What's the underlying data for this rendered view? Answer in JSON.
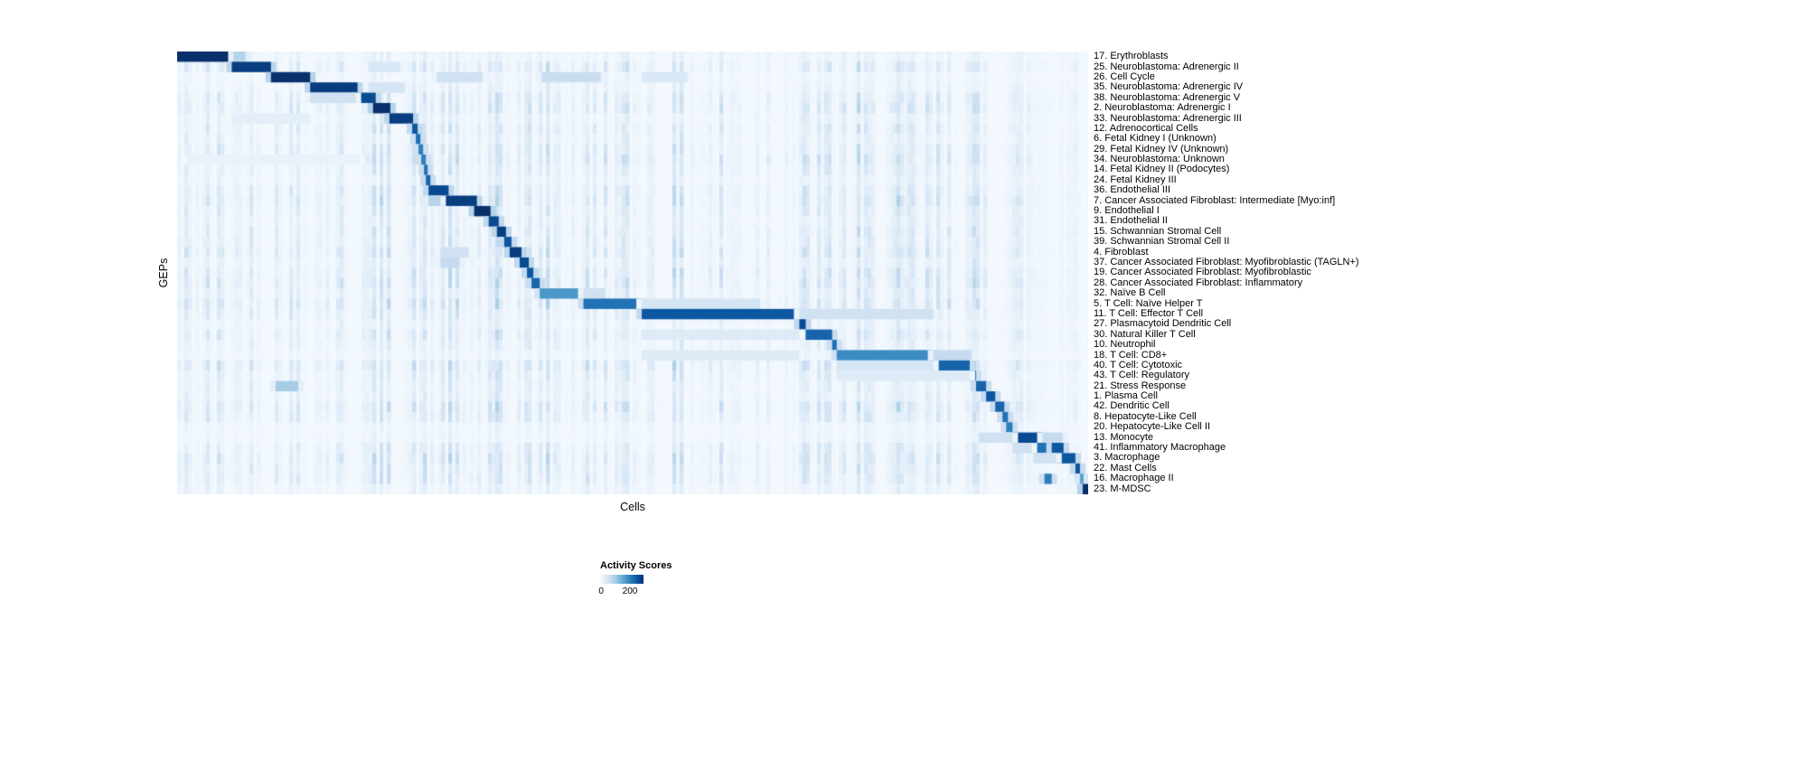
{
  "chart_data": {
    "type": "heatmap",
    "title": "",
    "xlabel": "Cells",
    "ylabel": "GEPs",
    "legend_title": "Activity Scores",
    "colormap": "Blues",
    "colorbar": {
      "min_label": "0",
      "max_label": "200",
      "range": [
        0,
        200
      ]
    },
    "colormap_stops": [
      "#f7fbff",
      "#deebf7",
      "#c6dbef",
      "#9ecae1",
      "#6baed6",
      "#4292c6",
      "#2171b5",
      "#08519c",
      "#08306b"
    ],
    "value_range": [
      0,
      200
    ],
    "grid": false,
    "legend_position": "bottom",
    "rows": [
      {
        "label": "17. Erythroblasts",
        "segments": [
          [
            0.0,
            0.062,
            200
          ],
          [
            0.062,
            0.075,
            60
          ]
        ]
      },
      {
        "label": "25. Neuroblastoma: Adrenergic II",
        "segments": [
          [
            0.06,
            0.103,
            190
          ],
          [
            0.21,
            0.245,
            30
          ]
        ]
      },
      {
        "label": "26. Cell Cycle",
        "segments": [
          [
            0.103,
            0.146,
            200
          ],
          [
            0.285,
            0.335,
            40
          ],
          [
            0.4,
            0.465,
            45
          ],
          [
            0.51,
            0.56,
            30
          ]
        ]
      },
      {
        "label": "35. Neuroblastoma: Adrenergic IV",
        "segments": [
          [
            0.146,
            0.198,
            190
          ],
          [
            0.21,
            0.25,
            35
          ]
        ]
      },
      {
        "label": "38. Neuroblastoma: Adrenergic V",
        "segments": [
          [
            0.196,
            0.218,
            180
          ],
          [
            0.146,
            0.196,
            40
          ]
        ]
      },
      {
        "label": "2. Neuroblastoma: Adrenergic I",
        "segments": [
          [
            0.215,
            0.234,
            200
          ]
        ]
      },
      {
        "label": "33. Neuroblastoma: Adrenergic III",
        "segments": [
          [
            0.233,
            0.259,
            190
          ],
          [
            0.06,
            0.146,
            20
          ]
        ]
      },
      {
        "label": "12. Adrenocortical Cells",
        "segments": [
          [
            0.258,
            0.264,
            170
          ]
        ]
      },
      {
        "label": "6. Fetal Kidney I (Unknown)",
        "segments": [
          [
            0.262,
            0.267,
            150
          ]
        ]
      },
      {
        "label": "29. Fetal Kidney IV (Unknown)",
        "segments": [
          [
            0.265,
            0.27,
            140
          ]
        ]
      },
      {
        "label": "34. Neuroblastoma: Unknown",
        "segments": [
          [
            0.268,
            0.273,
            140
          ],
          [
            0.01,
            0.2,
            14
          ]
        ]
      },
      {
        "label": "14. Fetal Kidney II (Podocytes)",
        "segments": [
          [
            0.271,
            0.275,
            150
          ]
        ]
      },
      {
        "label": "24. Fetal Kidney III",
        "segments": [
          [
            0.273,
            0.278,
            160
          ]
        ]
      },
      {
        "label": "36. Endothelial III",
        "segments": [
          [
            0.276,
            0.298,
            180
          ]
        ]
      },
      {
        "label": "7. Cancer Associated Fibroblast: Intermediate [Myo:inf]",
        "segments": [
          [
            0.289,
            0.329,
            190
          ],
          [
            0.276,
            0.289,
            60
          ]
        ]
      },
      {
        "label": "9. Endothelial I",
        "segments": [
          [
            0.326,
            0.344,
            200
          ]
        ]
      },
      {
        "label": "31. Endothelial II",
        "segments": [
          [
            0.342,
            0.353,
            180
          ]
        ]
      },
      {
        "label": "15. Schwannian Stromal Cell",
        "segments": [
          [
            0.351,
            0.361,
            190
          ]
        ]
      },
      {
        "label": "39. Schwannian Stromal Cell II",
        "segments": [
          [
            0.359,
            0.367,
            170
          ]
        ]
      },
      {
        "label": "4. Fibroblast",
        "segments": [
          [
            0.365,
            0.378,
            190
          ],
          [
            0.289,
            0.32,
            40
          ]
        ]
      },
      {
        "label": "37. Cancer Associated Fibroblast: Myofibroblastic (TAGLN+)",
        "segments": [
          [
            0.376,
            0.386,
            180
          ],
          [
            0.289,
            0.31,
            50
          ]
        ]
      },
      {
        "label": "19. Cancer Associated Fibroblast: Myofibroblastic",
        "segments": [
          [
            0.384,
            0.391,
            170
          ]
        ]
      },
      {
        "label": "28. Cancer Associated Fibroblast: Inflammatory",
        "segments": [
          [
            0.389,
            0.398,
            160
          ]
        ]
      },
      {
        "label": "32. Naïve B Cell",
        "segments": [
          [
            0.398,
            0.446,
            120
          ],
          [
            0.446,
            0.47,
            40
          ]
        ]
      },
      {
        "label": "5. T Cell: Naïve Helper T",
        "segments": [
          [
            0.446,
            0.51,
            150
          ],
          [
            0.51,
            0.64,
            35
          ]
        ]
      },
      {
        "label": "11. T Cell: Effector T Cell",
        "segments": [
          [
            0.51,
            0.683,
            170
          ],
          [
            0.683,
            0.83,
            40
          ]
        ]
      },
      {
        "label": "27. Plasmacytoid Dendritic Cell",
        "segments": [
          [
            0.683,
            0.69,
            180
          ]
        ]
      },
      {
        "label": "30. Natural Killer T Cell",
        "segments": [
          [
            0.69,
            0.719,
            160
          ],
          [
            0.51,
            0.683,
            25
          ]
        ]
      },
      {
        "label": "10. Neutrophil",
        "segments": [
          [
            0.719,
            0.724,
            150
          ]
        ]
      },
      {
        "label": "18. T Cell: CD8+",
        "segments": [
          [
            0.724,
            0.83,
            130
          ],
          [
            0.83,
            0.872,
            50
          ],
          [
            0.51,
            0.683,
            25
          ]
        ]
      },
      {
        "label": "40. T Cell: Cytotoxic",
        "segments": [
          [
            0.83,
            0.87,
            160
          ],
          [
            0.724,
            0.83,
            35
          ]
        ]
      },
      {
        "label": "43. T Cell: Regulatory",
        "segments": [
          [
            0.868,
            0.877,
            150
          ],
          [
            0.724,
            0.87,
            25
          ]
        ]
      },
      {
        "label": "21. Stress Response",
        "segments": [
          [
            0.877,
            0.888,
            160
          ],
          [
            0.108,
            0.133,
            70
          ]
        ]
      },
      {
        "label": "1. Plasma Cell",
        "segments": [
          [
            0.888,
            0.898,
            170
          ]
        ]
      },
      {
        "label": "42. Dendritic Cell",
        "segments": [
          [
            0.898,
            0.908,
            160
          ]
        ]
      },
      {
        "label": "8. Hepatocyte-Like Cell",
        "segments": [
          [
            0.906,
            0.912,
            150
          ]
        ]
      },
      {
        "label": "20. Hepatocyte-Like Cell II",
        "segments": [
          [
            0.91,
            0.917,
            140
          ]
        ]
      },
      {
        "label": "13. Monocyte",
        "segments": [
          [
            0.917,
            0.95,
            180
          ],
          [
            0.88,
            0.917,
            40
          ],
          [
            0.95,
            0.972,
            50
          ]
        ]
      },
      {
        "label": "41. Inflammatory Macrophage",
        "segments": [
          [
            0.938,
            0.958,
            150
          ],
          [
            0.96,
            0.973,
            170
          ],
          [
            0.917,
            0.938,
            40
          ]
        ]
      },
      {
        "label": "3. Macrophage",
        "segments": [
          [
            0.965,
            0.986,
            170
          ],
          [
            0.94,
            0.965,
            40
          ]
        ]
      },
      {
        "label": "22. Mast Cells",
        "segments": [
          [
            0.986,
            0.991,
            170
          ]
        ]
      },
      {
        "label": "16. Macrophage II",
        "segments": [
          [
            0.952,
            0.96,
            140
          ],
          [
            0.991,
            0.995,
            110
          ]
        ]
      },
      {
        "label": "23. M-MDSC",
        "segments": [
          [
            0.994,
            1.0,
            200
          ]
        ]
      }
    ]
  }
}
